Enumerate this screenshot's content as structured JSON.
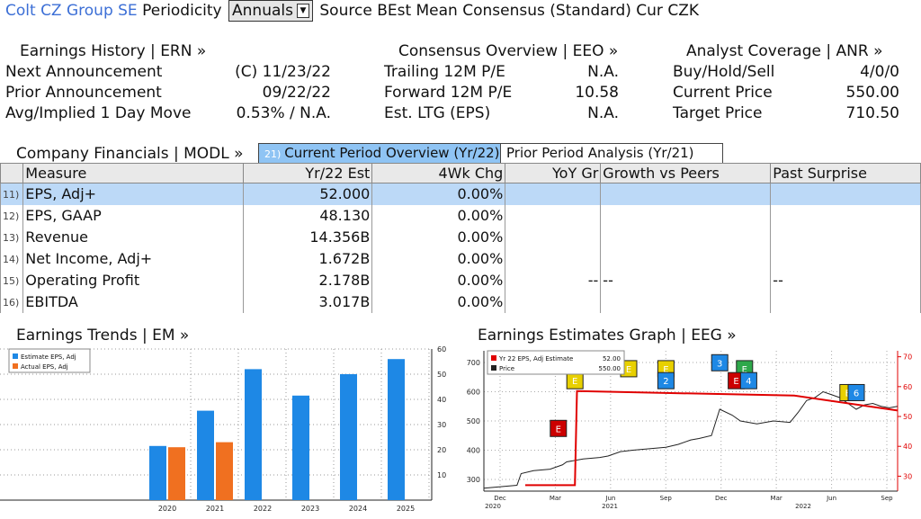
{
  "header": {
    "company": "Colt CZ Group SE",
    "periodicity_label": "Periodicity",
    "periodicity_value": "Annuals",
    "source_label": "Source",
    "source_value": "BEst Mean Consensus (Standard)",
    "cur_label": "Cur",
    "cur_value": "CZK"
  },
  "earnings_history": {
    "title": "Earnings History | ERN »",
    "rows": [
      {
        "label": "Next Announcement",
        "value": "(C)  11/23/22"
      },
      {
        "label": "Prior Announcement",
        "value": "09/22/22"
      },
      {
        "label": "Avg/Implied 1 Day Move",
        "value": "0.53% / N.A."
      }
    ]
  },
  "consensus": {
    "title": "Consensus Overview | EEO »",
    "rows": [
      {
        "label": "Trailing 12M P/E",
        "value": "N.A."
      },
      {
        "label": "Forward 12M P/E",
        "value": "10.58"
      },
      {
        "label": "Est. LTG (EPS)",
        "value": "N.A."
      }
    ]
  },
  "analyst": {
    "title": "Analyst Coverage | ANR »",
    "rows": [
      {
        "label": "Buy/Hold/Sell",
        "value": "4/0/0"
      },
      {
        "label": "Current Price",
        "value": "550.00"
      },
      {
        "label": "Target Price",
        "value": "710.50"
      }
    ]
  },
  "financials": {
    "title": "Company Financials | MODL »",
    "tab_current_num": "21)",
    "tab_current": "Current Period Overview (Yr/22)",
    "tab_prior": "Prior Period Analysis (Yr/21)",
    "columns": [
      "Measure",
      "Yr/22 Est",
      "4Wk Chg",
      "YoY Gr",
      "Growth vs Peers",
      "Past Surprise"
    ],
    "rows": [
      {
        "num": "11)",
        "measure": "EPS, Adj+",
        "est": "52.000",
        "chg": "0.00%",
        "yoy": "",
        "peers": "",
        "surprise": ""
      },
      {
        "num": "12)",
        "measure": "EPS, GAAP",
        "est": "48.130",
        "chg": "0.00%",
        "yoy": "",
        "peers": "",
        "surprise": ""
      },
      {
        "num": "13)",
        "measure": "Revenue",
        "est": "14.356B",
        "chg": "0.00%",
        "yoy": "",
        "peers": "",
        "surprise": ""
      },
      {
        "num": "14)",
        "measure": "Net Income, Adj+",
        "est": "1.672B",
        "chg": "0.00%",
        "yoy": "",
        "peers": "",
        "surprise": ""
      },
      {
        "num": "15)",
        "measure": "Operating Profit",
        "est": "2.178B",
        "chg": "0.00%",
        "yoy": "--",
        "peers": "--",
        "surprise": "--"
      },
      {
        "num": "16)",
        "measure": "EBITDA",
        "est": "3.017B",
        "chg": "0.00%",
        "yoy": "",
        "peers": "",
        "surprise": ""
      }
    ]
  },
  "colors": {
    "estimate": "#1e88e5",
    "actual": "#f07020",
    "highlight": "#bcd9f7",
    "price": "#222222",
    "eps_line": "#e00000"
  },
  "trends": {
    "title": "Earnings Trends | EM »",
    "chart_data": {
      "type": "bar",
      "categories": [
        "2020",
        "2021",
        "2022",
        "2023",
        "2024",
        "2025"
      ],
      "series": [
        {
          "name": "Estimate EPS, Adj",
          "values": [
            21.5,
            35.5,
            52,
            41.5,
            50,
            56
          ]
        },
        {
          "name": "Actual EPS, Adj",
          "values": [
            21,
            23,
            null,
            null,
            null,
            null
          ]
        }
      ],
      "yticks": [
        "10",
        "20",
        "30",
        "40",
        "50",
        "60"
      ],
      "ylim": [
        0,
        60
      ],
      "legend": "top-left",
      "grid": true
    }
  },
  "eeg": {
    "title": "Earnings Estimates Graph | EEG »",
    "legend": [
      {
        "name": "Yr 22 EPS, Adj Estimate",
        "value": "52.00"
      },
      {
        "name": "Price",
        "value": "550.00"
      }
    ],
    "chart_data": {
      "type": "line",
      "x_labels": [
        "Dec",
        "Mar",
        "Jun",
        "Sep",
        "Dec",
        "Mar",
        "Jun",
        "Sep"
      ],
      "year_labels": [
        "2020",
        "2021",
        "2022"
      ],
      "left_ticks": [
        "300",
        "400",
        "500",
        "600",
        "700"
      ],
      "right_ticks": [
        "30",
        "40",
        "50",
        "60",
        "70"
      ],
      "left_ylim": [
        260,
        740
      ],
      "right_ylim": [
        25,
        72
      ],
      "price": [
        [
          0,
          270
        ],
        [
          4,
          275
        ],
        [
          8,
          280
        ],
        [
          9,
          320
        ],
        [
          12,
          330
        ],
        [
          16,
          335
        ],
        [
          19,
          350
        ],
        [
          20,
          360
        ],
        [
          24,
          370
        ],
        [
          28,
          375
        ],
        [
          30,
          380
        ],
        [
          33,
          395
        ],
        [
          36,
          400
        ],
        [
          40,
          405
        ],
        [
          44,
          410
        ],
        [
          47,
          420
        ],
        [
          50,
          435
        ],
        [
          52,
          440
        ],
        [
          55,
          450
        ],
        [
          57,
          540
        ],
        [
          60,
          520
        ],
        [
          62,
          500
        ],
        [
          66,
          490
        ],
        [
          70,
          500
        ],
        [
          74,
          495
        ],
        [
          76,
          530
        ],
        [
          78,
          570
        ],
        [
          80,
          580
        ],
        [
          82,
          600
        ],
        [
          84,
          590
        ],
        [
          86,
          580
        ],
        [
          88,
          560
        ],
        [
          90,
          540
        ],
        [
          92,
          555
        ],
        [
          94,
          560
        ],
        [
          96,
          550
        ],
        [
          98,
          545
        ],
        [
          100,
          550
        ]
      ],
      "eps_estimate": [
        [
          10,
          27
        ],
        [
          22,
          27
        ],
        [
          22.5,
          58.5
        ],
        [
          75,
          57
        ],
        [
          100,
          52
        ]
      ],
      "markers": [
        {
          "label": "E",
          "x": 18,
          "y": 46,
          "color": "#cc0000"
        },
        {
          "label": "E",
          "x": 22,
          "y": 62,
          "color": "#e8d000"
        },
        {
          "label": "E",
          "x": 35,
          "y": 66,
          "color": "#e8d000"
        },
        {
          "label": "E",
          "x": 44,
          "y": 66,
          "color": "#e8d000"
        },
        {
          "label": "2",
          "x": 44,
          "y": 62,
          "color": "#1e88e5"
        },
        {
          "label": "3",
          "x": 57,
          "y": 68,
          "color": "#1e88e5"
        },
        {
          "label": "E",
          "x": 63,
          "y": 66,
          "color": "#2ea84a"
        },
        {
          "label": "E",
          "x": 61,
          "y": 62,
          "color": "#cc0000"
        },
        {
          "label": "4",
          "x": 64,
          "y": 62,
          "color": "#1e88e5"
        },
        {
          "label": "E",
          "x": 88,
          "y": 58,
          "color": "#e8d000"
        },
        {
          "label": "6",
          "x": 90,
          "y": 58,
          "color": "#1e88e5"
        }
      ]
    }
  }
}
